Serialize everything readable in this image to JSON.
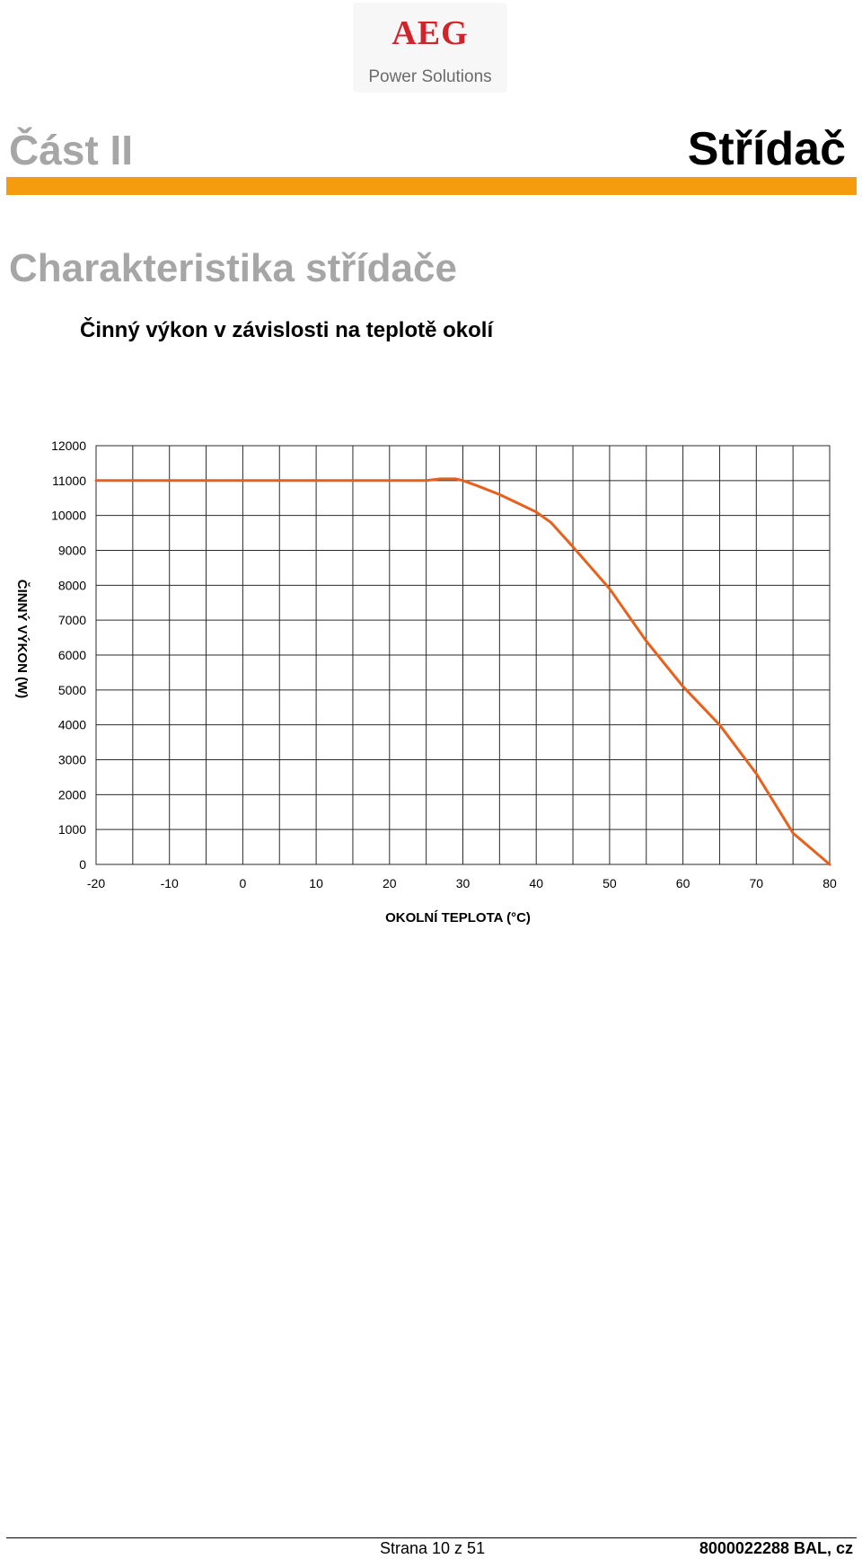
{
  "logo": {
    "brand": "AEG",
    "tagline": "Power Solutions"
  },
  "header": {
    "part": "Část II",
    "section": "Střídač"
  },
  "heading": "Charakteristika střídače",
  "subheading": "Činný výkon v závislosti na teplotě okolí",
  "colors": {
    "accent_bar": "#f59c0e",
    "series_line": "#e8611c",
    "heading_gray": "#a6a6a6",
    "logo_red": "#d3232a"
  },
  "chart_data": {
    "type": "line",
    "title": "",
    "xlabel": "OKOLNÍ TEPLOTA (°C)",
    "ylabel": "ČINNÝ VÝKON (W)",
    "xlim": [
      -20,
      80
    ],
    "ylim": [
      0,
      12000
    ],
    "xticks": [
      -20,
      -10,
      0,
      10,
      20,
      30,
      40,
      50,
      60,
      70,
      80
    ],
    "yticks": [
      0,
      1000,
      2000,
      3000,
      4000,
      5000,
      6000,
      7000,
      8000,
      9000,
      10000,
      11000,
      12000
    ],
    "grid": true,
    "legend": "none",
    "series": [
      {
        "x": [
          -20,
          0,
          20,
          25,
          27,
          29,
          30,
          32,
          35,
          38,
          40,
          42,
          45,
          50,
          55,
          60,
          65,
          70,
          75,
          80
        ],
        "y": [
          11000,
          11000,
          11000,
          11000,
          11050,
          11050,
          11000,
          10850,
          10600,
          10300,
          10100,
          9800,
          9100,
          7900,
          6400,
          5100,
          4000,
          2600,
          900,
          0
        ]
      }
    ]
  },
  "footer": {
    "page": "Strana 10 z 51",
    "doc": "8000022288 BAL, cz"
  }
}
